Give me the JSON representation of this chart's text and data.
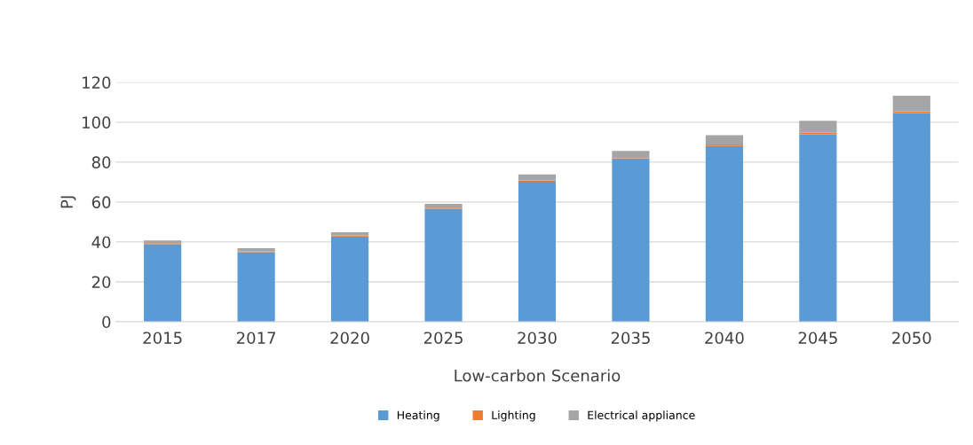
{
  "chart_data": {
    "type": "bar",
    "stacked": true,
    "xlabel": "Low-carbon Scenario",
    "ylabel": "PJ",
    "categories": [
      "2015",
      "2017",
      "2020",
      "2025",
      "2030",
      "2035",
      "2040",
      "2045",
      "2050"
    ],
    "series": [
      {
        "name": "Heating",
        "color": "#5b9bd5",
        "values": [
          38.8,
          34.8,
          42.7,
          56.6,
          70.2,
          81.3,
          88.1,
          93.9,
          104.6
        ]
      },
      {
        "name": "Lighting",
        "color": "#ed7d31",
        "values": [
          0.6,
          0.5,
          0.5,
          0.6,
          0.5,
          0.6,
          0.7,
          0.8,
          0.9
        ]
      },
      {
        "name": "Electrical appliance",
        "color": "#a5a5a5",
        "values": [
          1.3,
          1.6,
          1.6,
          1.9,
          3.1,
          3.7,
          4.7,
          6.0,
          7.8
        ]
      }
    ],
    "ylim": [
      0,
      120
    ],
    "yticks": [
      0,
      20,
      40,
      60,
      80,
      100,
      120
    ],
    "grid": "y",
    "legend": "bottom"
  }
}
